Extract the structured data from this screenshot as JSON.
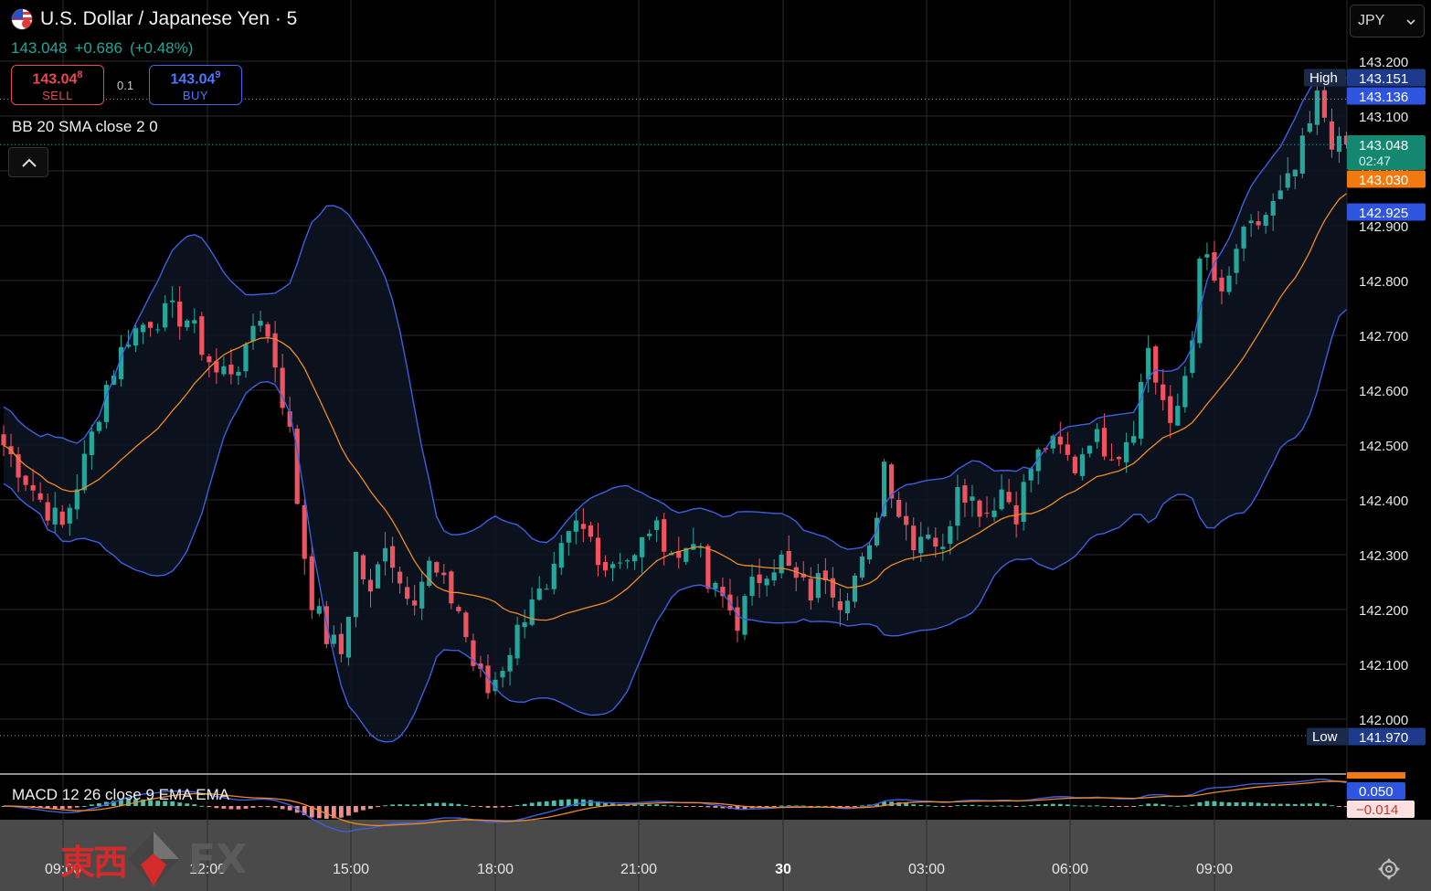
{
  "header": {
    "symbol_title": "U.S. Dollar / Japanese Yen · 5",
    "last_price": "143.048",
    "change": "+0.686",
    "change_pct": "(+0.48%)",
    "sell_price_main": "143.04",
    "sell_price_sup": "8",
    "sell_label": "SELL",
    "buy_price_main": "143.04",
    "buy_price_sup": "9",
    "buy_label": "BUY",
    "spread": "0.1",
    "indicator_label": "BB 20 SMA close 2 0",
    "macd_label": "MACD 12 26 close 9 EMA EMA"
  },
  "currency_select": {
    "value": "JPY"
  },
  "watermark": {
    "kanji": "東西",
    "fx": "FX"
  },
  "colors": {
    "up": "#26a69a",
    "down": "#ef5360",
    "bb_band": "#3d5fe0",
    "bb_basis": "#f28a22",
    "sell": "#e84855",
    "buy": "#3f66ee",
    "macd_line": "#3d5fe0",
    "signal_line": "#f28a22"
  },
  "chart_data": [
    {
      "type": "candlestick",
      "title": "U.S. Dollar / Japanese Yen · 5",
      "interval_minutes": 5,
      "x_tick_labels": [
        "09:00",
        "12:00",
        "15:00",
        "18:00",
        "21:00",
        "30",
        "03:00",
        "06:00",
        "09:00"
      ],
      "ylim": [
        141.93,
        143.24
      ],
      "y_ticks": [
        "142.000",
        "142.100",
        "142.200",
        "142.300",
        "142.400",
        "142.500",
        "142.600",
        "142.700",
        "142.800",
        "142.900",
        "143.000",
        "143.100",
        "143.200"
      ],
      "grid": true,
      "close_path": [
        [
          0,
          142.5
        ],
        [
          2,
          142.46
        ],
        [
          5,
          142.4
        ],
        [
          8,
          142.35
        ],
        [
          11,
          142.47
        ],
        [
          14,
          142.61
        ],
        [
          17,
          142.7
        ],
        [
          20,
          142.73
        ],
        [
          23,
          142.74
        ],
        [
          25,
          142.73
        ],
        [
          27,
          142.68
        ],
        [
          29,
          142.63
        ],
        [
          31,
          142.64
        ],
        [
          33,
          142.66
        ],
        [
          34,
          142.72
        ],
        [
          35,
          142.74
        ],
        [
          37,
          142.65
        ],
        [
          39,
          142.52
        ],
        [
          40,
          142.4
        ],
        [
          41,
          142.3
        ],
        [
          42,
          142.22
        ],
        [
          44,
          142.15
        ],
        [
          46,
          142.12
        ],
        [
          47,
          142.2
        ],
        [
          48,
          142.3
        ],
        [
          50,
          142.22
        ],
        [
          52,
          142.33
        ],
        [
          54,
          142.25
        ],
        [
          56,
          142.23
        ],
        [
          58,
          142.28
        ],
        [
          60,
          142.24
        ],
        [
          62,
          142.2
        ],
        [
          64,
          142.1
        ],
        [
          66,
          142.05
        ],
        [
          68,
          142.1
        ],
        [
          70,
          142.16
        ],
        [
          72,
          142.23
        ],
        [
          74,
          142.22
        ],
        [
          76,
          142.3
        ],
        [
          78,
          142.35
        ],
        [
          80,
          142.33
        ],
        [
          82,
          142.28
        ],
        [
          84,
          142.3
        ],
        [
          86,
          142.29
        ],
        [
          88,
          142.35
        ],
        [
          90,
          142.33
        ],
        [
          92,
          142.29
        ],
        [
          94,
          142.34
        ],
        [
          96,
          142.24
        ],
        [
          98,
          142.22
        ],
        [
          100,
          142.18
        ],
        [
          102,
          142.24
        ],
        [
          104,
          142.28
        ],
        [
          106,
          142.29
        ],
        [
          108,
          142.25
        ],
        [
          110,
          142.23
        ],
        [
          112,
          142.27
        ],
        [
          114,
          142.22
        ],
        [
          116,
          142.26
        ],
        [
          118,
          142.3
        ],
        [
          120,
          142.47
        ],
        [
          122,
          142.38
        ],
        [
          124,
          142.33
        ],
        [
          126,
          142.35
        ],
        [
          128,
          142.3
        ],
        [
          130,
          142.44
        ],
        [
          132,
          142.4
        ],
        [
          134,
          142.38
        ],
        [
          136,
          142.42
        ],
        [
          138,
          142.38
        ],
        [
          140,
          142.46
        ],
        [
          142,
          142.5
        ],
        [
          144,
          142.49
        ],
        [
          146,
          142.46
        ],
        [
          148,
          142.52
        ],
        [
          150,
          142.5
        ],
        [
          152,
          142.49
        ],
        [
          154,
          142.54
        ],
        [
          156,
          142.68
        ],
        [
          157,
          142.62
        ],
        [
          158,
          142.58
        ],
        [
          159,
          142.52
        ],
        [
          160,
          142.57
        ],
        [
          161,
          142.63
        ],
        [
          162,
          142.71
        ],
        [
          163,
          142.82
        ],
        [
          164,
          142.84
        ],
        [
          165,
          142.8
        ],
        [
          166,
          142.76
        ],
        [
          167,
          142.8
        ],
        [
          168,
          142.86
        ],
        [
          170,
          142.89
        ],
        [
          172,
          142.92
        ],
        [
          174,
          142.95
        ],
        [
          176,
          143.0
        ],
        [
          178,
          143.08
        ],
        [
          179,
          143.13
        ],
        [
          180,
          143.1
        ],
        [
          181,
          143.06
        ],
        [
          182,
          143.04
        ],
        [
          183,
          143.048
        ]
      ],
      "bollinger": {
        "period": 20,
        "stddev": 2,
        "source": "close"
      },
      "price_labels": {
        "high_label": "High",
        "high": "143.151",
        "bb_upper": "143.136",
        "last": "143.048",
        "countdown": "02:47",
        "bb_basis": "143.030",
        "bb_lower": "142.925",
        "low_label": "Low",
        "low": "141.970"
      }
    },
    {
      "type": "bar",
      "title": "MACD 12 26 close 9 EMA EMA",
      "series": [
        {
          "name": "MACD",
          "type": "line"
        },
        {
          "name": "Signal",
          "type": "line"
        },
        {
          "name": "Histogram",
          "type": "bar"
        }
      ],
      "values_shown": {
        "macd": "0.050",
        "histogram": "−0.014"
      }
    }
  ]
}
